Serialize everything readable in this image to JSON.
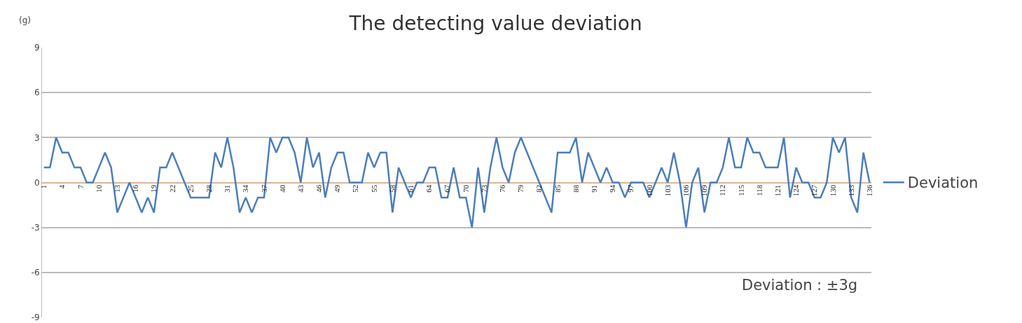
{
  "chart_data": {
    "type": "line",
    "title": "The detecting value deviation",
    "ylabel": "(g)",
    "annotations": [
      "Deviation : ±3g"
    ],
    "categories": [
      "1",
      null,
      null,
      "4",
      null,
      null,
      "7",
      null,
      null,
      "10",
      null,
      null,
      "13",
      null,
      null,
      "16",
      null,
      null,
      "19",
      null,
      null,
      "22",
      null,
      null,
      "25",
      null,
      null,
      "28",
      null,
      null,
      "31",
      null,
      null,
      "34",
      null,
      null,
      "37",
      null,
      null,
      "40",
      null,
      null,
      "43",
      null,
      null,
      "46",
      null,
      null,
      "49",
      null,
      null,
      "52",
      null,
      null,
      "55",
      null,
      null,
      "58",
      null,
      null,
      "61",
      null,
      null,
      "64",
      null,
      null,
      "67",
      null,
      null,
      "70",
      null,
      null,
      "73",
      null,
      null,
      "76",
      null,
      null,
      "79",
      null,
      null,
      "82",
      null,
      null,
      "85",
      null,
      null,
      "88",
      null,
      null,
      "91",
      null,
      null,
      "94",
      null,
      null,
      "97",
      null,
      null,
      "100",
      null,
      null,
      "103",
      null,
      null,
      "106",
      null,
      null,
      "109",
      null,
      null,
      "112",
      null,
      null,
      "115",
      null,
      null,
      "118",
      null,
      null,
      "121",
      null,
      null,
      "124",
      null,
      null,
      "127",
      null,
      null,
      "130",
      null,
      null,
      "133",
      null,
      null,
      "136"
    ],
    "series": [
      {
        "name": "Deviation",
        "color": "#4a7ebb",
        "values": [
          1,
          1,
          3,
          2,
          2,
          1,
          1,
          0,
          0,
          1,
          2,
          1,
          -2,
          -1,
          0,
          -1,
          -2,
          -1,
          -2,
          1,
          1,
          2,
          1,
          0,
          -1,
          -1,
          -1,
          -1,
          2,
          1,
          3,
          1,
          -2,
          -1,
          -2,
          -1,
          -1,
          3,
          2,
          3,
          3,
          2,
          0,
          3,
          1,
          2,
          -1,
          1,
          2,
          2,
          0,
          0,
          0,
          2,
          1,
          2,
          2,
          -2,
          1,
          0,
          -1,
          0,
          0,
          1,
          1,
          -1,
          -1,
          1,
          -1,
          -1,
          -3,
          1,
          -2,
          1,
          3,
          1,
          0,
          2,
          3,
          2,
          1,
          0,
          -1,
          -2,
          2,
          2,
          2,
          3,
          0,
          2,
          1,
          0,
          1,
          0,
          0,
          -1,
          0,
          0,
          0,
          -1,
          0,
          1,
          0,
          2,
          0,
          -3,
          0,
          1,
          -2,
          0,
          0,
          1,
          3,
          1,
          1,
          3,
          2,
          2,
          1,
          1,
          1,
          3,
          -1,
          1,
          0,
          0,
          -1,
          -1,
          0,
          3,
          2,
          3,
          -1,
          -2,
          2,
          0
        ]
      }
    ],
    "ylim": [
      -9,
      9
    ],
    "yticks": [
      -9,
      -6,
      -3,
      0,
      3,
      6,
      9
    ],
    "grid": "y",
    "legend": "right",
    "marker": "none",
    "line_style": "solid"
  }
}
